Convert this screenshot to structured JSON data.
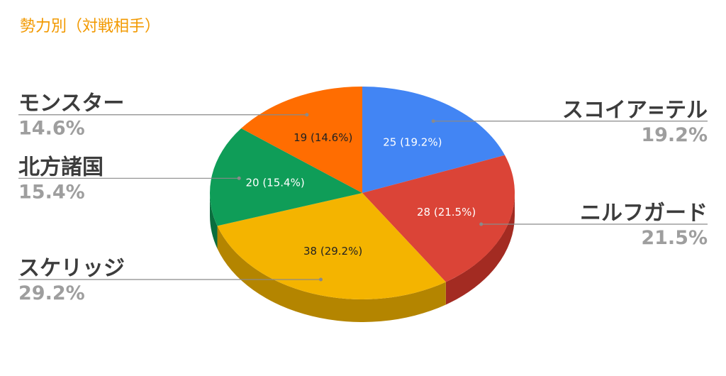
{
  "chart_data": {
    "type": "pie",
    "title": "勢力別（対戦相手）",
    "slices": [
      {
        "label": "スコイア=テル",
        "value": 25,
        "percent": "19.2%",
        "data_label": "25 (19.2%)",
        "color": "#4285f4",
        "side_color": "#2f63b8"
      },
      {
        "label": "ニルフガード",
        "value": 28,
        "percent": "21.5%",
        "data_label": "28 (21.5%)",
        "color": "#db4437",
        "side_color": "#a32b22"
      },
      {
        "label": "スケリッジ",
        "value": 38,
        "percent": "29.2%",
        "data_label": "38 (29.2%)",
        "color": "#f4b400",
        "side_color": "#b48500"
      },
      {
        "label": "北方諸国",
        "value": 20,
        "percent": "15.4%",
        "data_label": "20 (15.4%)",
        "color": "#0f9d58",
        "side_color": "#0a6e3e"
      },
      {
        "label": "モンスター",
        "value": 19,
        "percent": "14.6%",
        "data_label": "19 (14.6%)",
        "color": "#ff6d01",
        "side_color": "#b84e00"
      }
    ],
    "legend": "labels-outside",
    "three_d": true
  },
  "colors": {
    "title": "#f29900",
    "data_label_dark": "#222222",
    "data_label_light": "#ffffff",
    "leader_line": "#8a8a8a"
  }
}
